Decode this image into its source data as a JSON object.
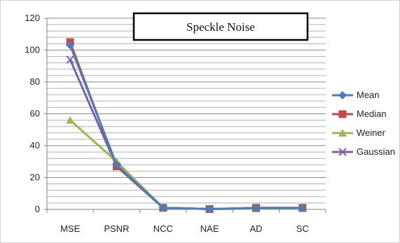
{
  "chart_data": {
    "type": "line",
    "title": "Speckle Noise",
    "categories": [
      "MSE",
      "PSNR",
      "NCC",
      "NAE",
      "AD",
      "SC"
    ],
    "ylim": [
      0,
      120
    ],
    "yticks": [
      0,
      20,
      40,
      60,
      80,
      100,
      120
    ],
    "grid": true,
    "legend_position": "right",
    "series": [
      {
        "name": "Mean",
        "values": [
          103,
          28,
          1,
          0.2,
          0.8,
          0.9
        ],
        "color": "#4a7ebb",
        "marker": "diamond"
      },
      {
        "name": "Median",
        "values": [
          105,
          27,
          1,
          0.2,
          1.0,
          1.0
        ],
        "color": "#be4b48",
        "marker": "square"
      },
      {
        "name": "Weiner",
        "values": [
          56,
          30,
          1,
          0.2,
          0.5,
          0.6
        ],
        "color": "#98b954",
        "marker": "triangle"
      },
      {
        "name": "Gaussian",
        "values": [
          94,
          27,
          1,
          0.2,
          0.7,
          0.8
        ],
        "color": "#7d60a0",
        "marker": "x"
      }
    ]
  }
}
